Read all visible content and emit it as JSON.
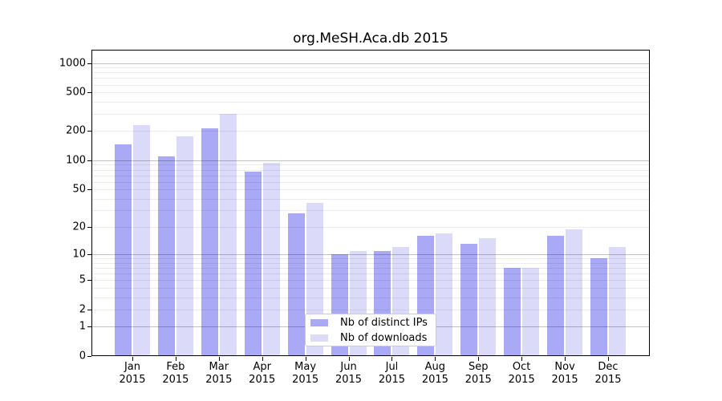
{
  "chart_data": {
    "type": "bar",
    "title": "org.MeSH.Aca.db 2015",
    "categories": [
      "Jan",
      "Feb",
      "Mar",
      "Apr",
      "May",
      "Jun",
      "Jul",
      "Aug",
      "Sep",
      "Oct",
      "Nov",
      "Dec"
    ],
    "category_year": "2015",
    "series": [
      {
        "name": "Nb of distinct IPs",
        "color": "#a9a9f6",
        "values": [
          146,
          110,
          213,
          76,
          28,
          10,
          11,
          16,
          13,
          7,
          16,
          9
        ]
      },
      {
        "name": "Nb of downloads",
        "color": "#dbdbf9",
        "values": [
          230,
          175,
          303,
          94,
          36,
          11,
          12,
          17,
          15,
          7,
          19,
          12
        ]
      }
    ],
    "xlabel": "",
    "ylabel": "",
    "y_axis": {
      "scale": "log1p",
      "tick_labels": [
        1000,
        500,
        200,
        100,
        50,
        20,
        10,
        5,
        2,
        1,
        0
      ],
      "major_gridlines": [
        1,
        10,
        100,
        1000
      ],
      "minor_gridlines": [
        2,
        3,
        4,
        5,
        6,
        7,
        8,
        9,
        20,
        30,
        40,
        50,
        60,
        70,
        80,
        90,
        200,
        300,
        400,
        500,
        600,
        700,
        800,
        900
      ],
      "ylim": [
        0,
        1370
      ]
    },
    "grid": true,
    "legend_position": "lower center",
    "bar_colors": {
      "distinct_ips": "#a9a9f6",
      "downloads": "#dbdbf9"
    }
  }
}
